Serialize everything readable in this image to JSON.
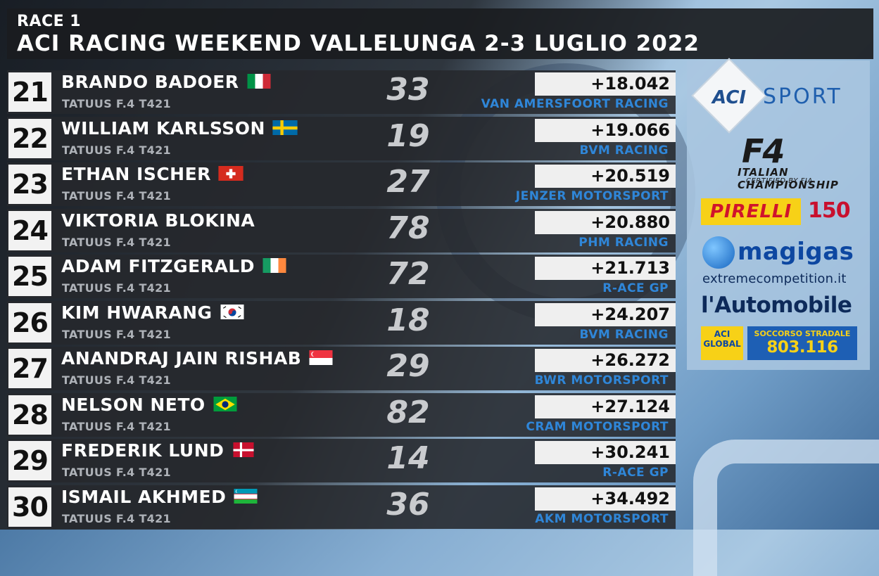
{
  "header": {
    "race_label": "RACE 1",
    "event_title": "ACI RACING WEEKEND VALLELUNGA 2-3 LUGLIO 2022"
  },
  "rows": [
    {
      "pos": "21",
      "driver": "BRANDO BADOER",
      "flag": "italy-flag",
      "car": "TATUUS F.4 T421",
      "number": "33",
      "gap": "+18.042",
      "team": "VAN AMERSFOORT RACING"
    },
    {
      "pos": "22",
      "driver": "WILLIAM KARLSSON",
      "flag": "sweden-flag",
      "car": "TATUUS F.4 T421",
      "number": "19",
      "gap": "+19.066",
      "team": "BVM RACING"
    },
    {
      "pos": "23",
      "driver": "ETHAN ISCHER",
      "flag": "switzerland-flag",
      "car": "TATUUS F.4 T421",
      "number": "27",
      "gap": "+20.519",
      "team": "JENZER MOTORSPORT"
    },
    {
      "pos": "24",
      "driver": "VIKTORIA BLOKINA",
      "flag": "",
      "car": "TATUUS F.4 T421",
      "number": "78",
      "gap": "+20.880",
      "team": "PHM RACING"
    },
    {
      "pos": "25",
      "driver": "ADAM FITZGERALD",
      "flag": "ireland-flag",
      "car": "TATUUS F.4 T421",
      "number": "72",
      "gap": "+21.713",
      "team": "R-ACE GP"
    },
    {
      "pos": "26",
      "driver": "KIM HWARANG",
      "flag": "south-korea-flag",
      "car": "TATUUS F.4 T421",
      "number": "18",
      "gap": "+24.207",
      "team": "BVM RACING"
    },
    {
      "pos": "27",
      "driver": "ANANDRAJ JAIN RISHAB",
      "flag": "singapore-flag",
      "car": "TATUUS F.4 T421",
      "number": "29",
      "gap": "+26.272",
      "team": "BWR MOTORSPORT"
    },
    {
      "pos": "28",
      "driver": "NELSON NETO",
      "flag": "brazil-flag",
      "car": "TATUUS F.4 T421",
      "number": "82",
      "gap": "+27.124",
      "team": "CRAM MOTORSPORT"
    },
    {
      "pos": "29",
      "driver": "FREDERIK LUND",
      "flag": "denmark-flag",
      "car": "TATUUS F.4 T421",
      "number": "14",
      "gap": "+30.241",
      "team": "R-ACE GP"
    },
    {
      "pos": "30",
      "driver": "ISMAIL AKHMED",
      "flag": "uzbekistan-flag",
      "car": "TATUUS F.4 T421",
      "number": "36",
      "gap": "+34.492",
      "team": "AKM MOTORSPORT"
    }
  ],
  "sponsors": {
    "aci": "ACI",
    "sport": "SPORT",
    "f4": "F4",
    "f4_sub": "ITALIAN CHAMPIONSHIP",
    "f4_sub2": "CERTIFIED BY FIA",
    "pirelli": "PIRELLI",
    "pirelli_150": "150",
    "magigas": "magigas",
    "extreme": "extremecompetition.it",
    "automobile": "l'Automobile",
    "aci_global": "ACI GLOBAL",
    "soccorso_label": "SOCCORSO STRADALE",
    "soccorso_number": "803.116"
  },
  "colors": {
    "team_blue": "#2f86d8",
    "header_bg": "#1a1c20",
    "pos_box": "#f2f2f2"
  }
}
